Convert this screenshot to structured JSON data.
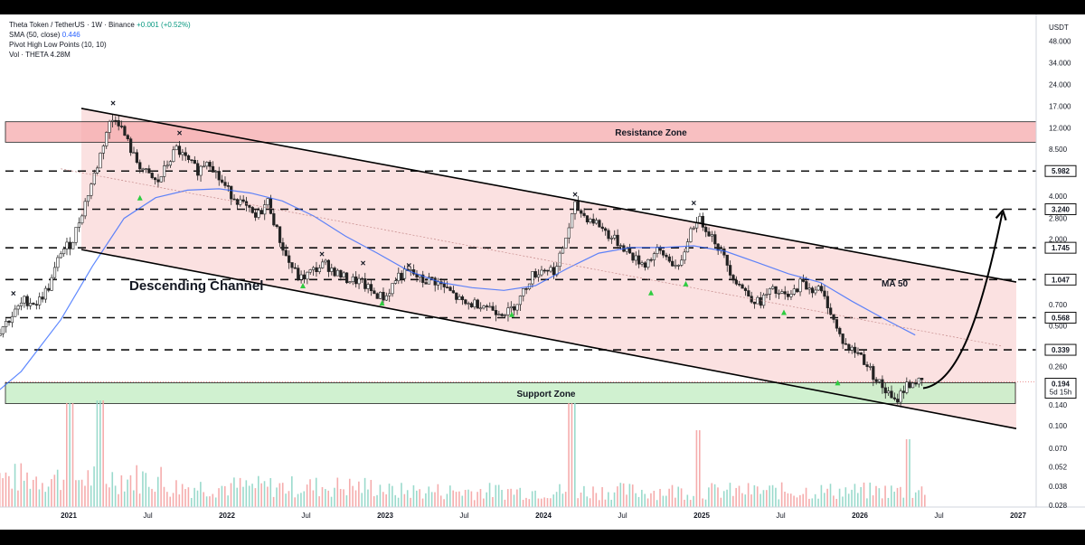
{
  "header": {
    "symbol": "Theta Token / TetherUS · 1W · Binance",
    "change": "+0.001 (+0.52%)",
    "sma_label": "SMA (50, close)",
    "sma_value": "0.446",
    "pivot_label": "Pivot High Low Points (10, 10)",
    "vol_label": "Vol · THETA",
    "vol_value": "4.28M"
  },
  "chart_data": {
    "type": "candlestick",
    "unit_label": "USDT",
    "y_scale": "log",
    "ylim": [
      0.024,
      58
    ],
    "y_ticks": [
      "48.000",
      "34.000",
      "24.000",
      "17.000",
      "12.000",
      "8.500",
      "4.000",
      "2.800",
      "2.000",
      "0.700",
      "0.500",
      "0.260",
      "0.140",
      "0.100",
      "0.070",
      "0.052",
      "0.038",
      "0.028"
    ],
    "x_labels": [
      "2021",
      "Jul",
      "2022",
      "Jul",
      "2023",
      "Jul",
      "2024",
      "Jul",
      "2025",
      "Jul",
      "2026",
      "Jul",
      "2027"
    ],
    "key_levels": [
      {
        "label": "5.982",
        "value": 5.982
      },
      {
        "label": "3.240",
        "value": 3.24
      },
      {
        "label": "1.745",
        "value": 1.745
      },
      {
        "label": "1.047",
        "value": 1.047
      },
      {
        "label": "0.568",
        "value": 0.568
      },
      {
        "label": "0.339",
        "value": 0.339
      }
    ],
    "last_price": {
      "label": "0.194",
      "value": 0.194,
      "countdown": "5d 15h"
    },
    "resistance_zone": {
      "label": "Resistance Zone",
      "low": 9.5,
      "high": 13.2
    },
    "support_zone": {
      "label": "Support Zone",
      "low": 0.143,
      "high": 0.2
    },
    "channel": {
      "label": "Descending Channel",
      "upper": [
        [
          2020.9,
          17.8
        ],
        [
          2026.9,
          1.05
        ]
      ],
      "lower": [
        [
          2020.9,
          1.85
        ],
        [
          2026.9,
          0.1
        ]
      ]
    },
    "ma_label": "MA 50",
    "price_points": [
      [
        2020.45,
        0.34
      ],
      [
        2020.55,
        0.45
      ],
      [
        2020.65,
        0.6
      ],
      [
        2020.72,
        0.75
      ],
      [
        2020.8,
        0.72
      ],
      [
        2020.88,
        0.95
      ],
      [
        2020.95,
        1.65
      ],
      [
        2021.02,
        1.9
      ],
      [
        2021.1,
        3.5
      ],
      [
        2021.18,
        6.5
      ],
      [
        2021.25,
        12.5
      ],
      [
        2021.3,
        14.5
      ],
      [
        2021.36,
        10.2
      ],
      [
        2021.42,
        7.2
      ],
      [
        2021.5,
        5.6
      ],
      [
        2021.56,
        4.9
      ],
      [
        2021.62,
        6.6
      ],
      [
        2021.68,
        8.6
      ],
      [
        2021.75,
        7.0
      ],
      [
        2021.82,
        6.0
      ],
      [
        2021.88,
        7.4
      ],
      [
        2021.95,
        5.3
      ],
      [
        2022.02,
        4.2
      ],
      [
        2022.1,
        3.5
      ],
      [
        2022.18,
        2.8
      ],
      [
        2022.26,
        3.7
      ],
      [
        2022.32,
        2.2
      ],
      [
        2022.38,
        1.45
      ],
      [
        2022.46,
        1.05
      ],
      [
        2022.55,
        1.22
      ],
      [
        2022.62,
        1.35
      ],
      [
        2022.7,
        1.15
      ],
      [
        2022.76,
        1.05
      ],
      [
        2022.84,
        1.02
      ],
      [
        2022.92,
        0.85
      ],
      [
        2023.0,
        0.78
      ],
      [
        2023.08,
        1.12
      ],
      [
        2023.16,
        1.18
      ],
      [
        2023.24,
        1.02
      ],
      [
        2023.3,
        1.05
      ],
      [
        2023.4,
        0.88
      ],
      [
        2023.5,
        0.7
      ],
      [
        2023.6,
        0.72
      ],
      [
        2023.7,
        0.64
      ],
      [
        2023.78,
        0.62
      ],
      [
        2023.86,
        0.8
      ],
      [
        2023.92,
        1.1
      ],
      [
        2024.0,
        1.25
      ],
      [
        2024.08,
        1.22
      ],
      [
        2024.15,
        2.2
      ],
      [
        2024.2,
        3.4
      ],
      [
        2024.26,
        2.9
      ],
      [
        2024.34,
        2.6
      ],
      [
        2024.42,
        2.1
      ],
      [
        2024.5,
        1.8
      ],
      [
        2024.58,
        1.45
      ],
      [
        2024.64,
        1.35
      ],
      [
        2024.72,
        1.65
      ],
      [
        2024.8,
        1.45
      ],
      [
        2024.86,
        1.2
      ],
      [
        2024.92,
        2.2
      ],
      [
        2024.97,
        2.8
      ],
      [
        2025.02,
        2.5
      ],
      [
        2025.08,
        2.0
      ],
      [
        2025.14,
        1.5
      ],
      [
        2025.2,
        1.1
      ],
      [
        2025.28,
        0.85
      ],
      [
        2025.36,
        0.72
      ],
      [
        2025.44,
        0.88
      ],
      [
        2025.5,
        0.82
      ],
      [
        2025.56,
        0.78
      ],
      [
        2025.62,
        1.0
      ],
      [
        2025.68,
        0.92
      ],
      [
        2025.74,
        0.9
      ],
      [
        2025.8,
        0.7
      ],
      [
        2025.86,
        0.45
      ],
      [
        2025.92,
        0.35
      ],
      [
        2026.0,
        0.32
      ],
      [
        2026.06,
        0.25
      ],
      [
        2026.12,
        0.2
      ],
      [
        2026.18,
        0.165
      ],
      [
        2026.22,
        0.145
      ],
      [
        2026.26,
        0.17
      ],
      [
        2026.3,
        0.195
      ],
      [
        2026.36,
        0.205
      ],
      [
        2026.4,
        0.194
      ]
    ],
    "sma50_points": [
      [
        2020.45,
        0.14
      ],
      [
        2020.7,
        0.24
      ],
      [
        2020.95,
        0.55
      ],
      [
        2021.15,
        1.3
      ],
      [
        2021.35,
        2.8
      ],
      [
        2021.55,
        3.9
      ],
      [
        2021.75,
        4.4
      ],
      [
        2021.95,
        4.5
      ],
      [
        2022.15,
        4.2
      ],
      [
        2022.35,
        3.7
      ],
      [
        2022.55,
        2.9
      ],
      [
        2022.75,
        2.1
      ],
      [
        2022.95,
        1.6
      ],
      [
        2023.15,
        1.2
      ],
      [
        2023.35,
        1.0
      ],
      [
        2023.55,
        0.92
      ],
      [
        2023.75,
        0.88
      ],
      [
        2023.95,
        0.95
      ],
      [
        2024.15,
        1.25
      ],
      [
        2024.35,
        1.6
      ],
      [
        2024.55,
        1.75
      ],
      [
        2024.75,
        1.75
      ],
      [
        2024.95,
        1.8
      ],
      [
        2025.15,
        1.65
      ],
      [
        2025.35,
        1.38
      ],
      [
        2025.55,
        1.15
      ],
      [
        2025.75,
        1.0
      ],
      [
        2025.95,
        0.74
      ],
      [
        2026.15,
        0.56
      ],
      [
        2026.35,
        0.43
      ]
    ],
    "pivot_highs": [
      [
        2020.65,
        0.8
      ],
      [
        2021.28,
        17.0
      ],
      [
        2021.7,
        10.5
      ],
      [
        2022.6,
        1.5
      ],
      [
        2022.86,
        1.3
      ],
      [
        2023.15,
        1.25
      ],
      [
        2024.2,
        3.9
      ],
      [
        2024.95,
        3.4
      ]
    ],
    "pivot_lows": [
      [
        2021.45,
        3.9
      ],
      [
        2022.48,
        0.95
      ],
      [
        2022.98,
        0.72
      ],
      [
        2023.8,
        0.6
      ],
      [
        2024.68,
        0.85
      ],
      [
        2024.9,
        0.98
      ],
      [
        2025.52,
        0.62
      ],
      [
        2025.86,
        0.2
      ]
    ],
    "projection": [
      [
        2026.4,
        0.194
      ],
      [
        2026.6,
        0.24
      ],
      [
        2026.75,
        0.55
      ],
      [
        2026.9,
        3.05
      ]
    ]
  }
}
